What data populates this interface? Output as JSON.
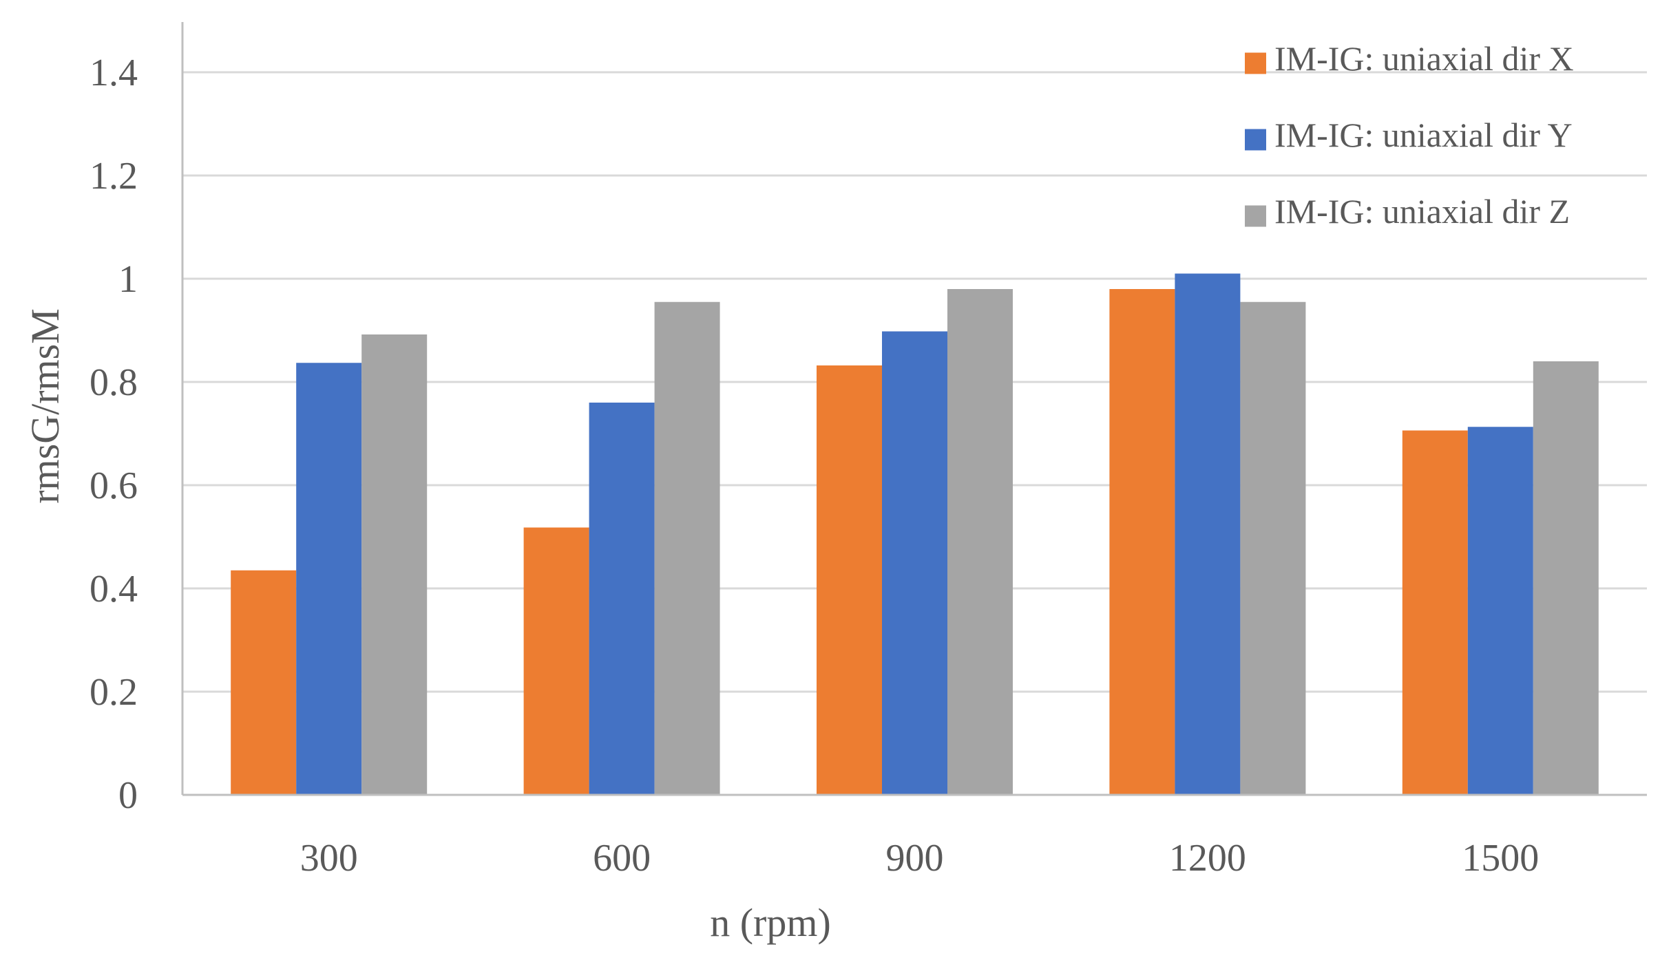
{
  "chart_data": {
    "type": "bar",
    "title": "",
    "xlabel": "n (rpm)",
    "ylabel": "rmsG/rmsM",
    "categories": [
      "300",
      "600",
      "900",
      "1200",
      "1500"
    ],
    "series": [
      {
        "name": "IM-IG: uniaxial dir X",
        "color": "#ED7D31",
        "values": [
          0.435,
          0.518,
          0.832,
          0.98,
          0.706
        ]
      },
      {
        "name": "IM-IG: uniaxial dir Y",
        "color": "#4472C4",
        "values": [
          0.837,
          0.76,
          0.898,
          1.01,
          0.713
        ]
      },
      {
        "name": "IM-IG: uniaxial dir Z",
        "color": "#A5A5A5",
        "values": [
          0.892,
          0.955,
          0.98,
          0.955,
          0.84
        ]
      }
    ],
    "ylim": [
      0,
      1.5
    ],
    "yticks": [
      "0",
      "0.2",
      "0.4",
      "0.6",
      "0.8",
      "1",
      "1.2",
      "1.4"
    ],
    "grid": true,
    "legend_position": "top-right"
  },
  "colors": {
    "gridline": "#D9D9D9",
    "axis": "#BFBFBF",
    "text": "#595959"
  }
}
